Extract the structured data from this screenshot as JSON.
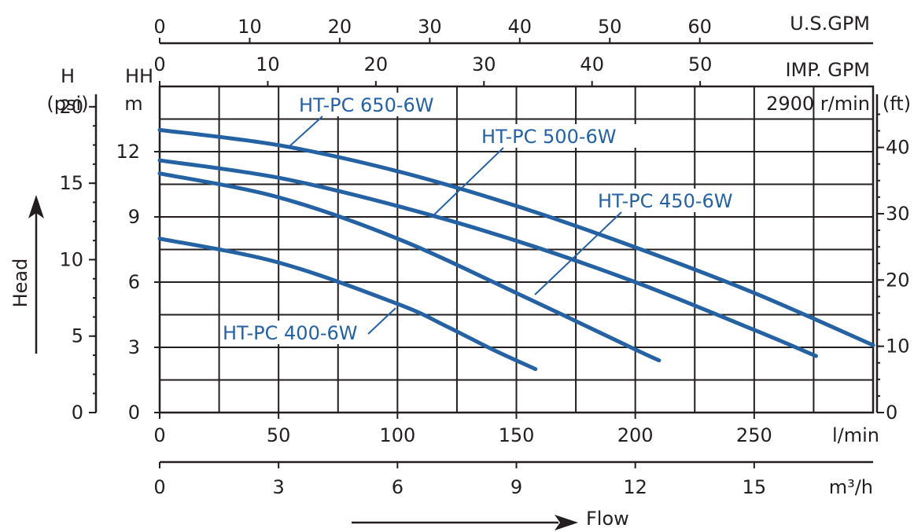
{
  "chart_data": {
    "type": "line",
    "accent_color": "#2462a3",
    "speed_label": "2900 r/min",
    "x_primary": {
      "unit": "l/min",
      "range": [
        0,
        300
      ],
      "ticks": [
        0,
        50,
        100,
        150,
        200,
        250
      ]
    },
    "x_m3h": {
      "unit": "m³/h",
      "range": [
        0,
        18
      ],
      "ticks": [
        0,
        3,
        6,
        9,
        12,
        15
      ]
    },
    "x_usgpm": {
      "unit": "U.S.GPM",
      "range": [
        0,
        79.25
      ],
      "ticks": [
        0,
        10,
        20,
        30,
        40,
        50,
        60
      ]
    },
    "x_impgpm": {
      "unit": "IMP. GPM",
      "range": [
        0,
        66
      ],
      "ticks": [
        0,
        10,
        20,
        30,
        40,
        50
      ]
    },
    "y_primary": {
      "unit": "m",
      "range": [
        0,
        15
      ],
      "ticks": [
        0,
        3,
        6,
        9,
        12
      ]
    },
    "y_psi": {
      "unit": "(psi)",
      "range": [
        0,
        21.33
      ],
      "ticks": [
        0,
        5,
        10,
        15,
        20
      ]
    },
    "y_ft": {
      "unit": "(ft)",
      "range": [
        0,
        49.2
      ],
      "ticks": [
        0,
        10,
        20,
        30,
        40
      ]
    },
    "left_header_H": "H",
    "left_header_HH": "HH",
    "x_title": "Flow",
    "y_title": "Head",
    "series": [
      {
        "name": "HT-PC 650-6W",
        "x": [
          0,
          50,
          100,
          150,
          200,
          250,
          300
        ],
        "y": [
          13,
          12.3,
          11.1,
          9.5,
          7.6,
          5.5,
          3.1
        ]
      },
      {
        "name": "HT-PC 500-6W",
        "x": [
          0,
          50,
          100,
          150,
          200,
          250,
          276
        ],
        "y": [
          11.6,
          10.8,
          9.5,
          7.9,
          6.0,
          3.8,
          2.6
        ]
      },
      {
        "name": "HT-PC 450-6W",
        "x": [
          0,
          50,
          100,
          150,
          200,
          210
        ],
        "y": [
          11.0,
          9.9,
          8.0,
          5.5,
          2.9,
          2.4
        ]
      },
      {
        "name": "HT-PC 400-6W",
        "x": [
          0,
          50,
          100,
          120,
          140,
          158
        ],
        "y": [
          8.0,
          6.9,
          5.0,
          4.0,
          2.9,
          2.0
        ]
      }
    ]
  }
}
